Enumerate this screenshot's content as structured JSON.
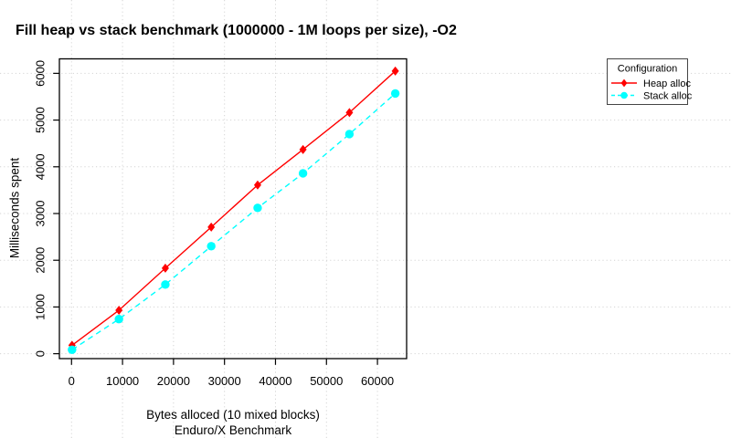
{
  "title": "Fill heap vs stack benchmark (1000000 - 1M loops per size), -O2",
  "colors": {
    "background": "#FFFFFF",
    "heap": "#FF0000",
    "stack": "#00FFFF",
    "grid": "#D4D4D4",
    "axis": "#000000",
    "legend_border": "#444444"
  },
  "legend": {
    "title": "Configuration",
    "items": [
      {
        "label": "Heap alloc",
        "series": "heap"
      },
      {
        "label": "Stack alloc",
        "series": "stack"
      }
    ]
  },
  "chart_data": {
    "type": "line",
    "title": "Fill heap vs stack benchmark (1000000 - 1M loops per size), -O2",
    "xlabel": "Bytes alloced (10 mixed blocks)",
    "xlabel_line2": "Enduro/X Benchmark",
    "ylabel": "Milliseconds spent",
    "x": [
      100,
      9300,
      18400,
      27400,
      36500,
      45400,
      54500,
      63500
    ],
    "series": [
      {
        "name": "Heap alloc",
        "color": "#FF0000",
        "marker": "diamond",
        "line_style": "solid",
        "values": [
          180,
          930,
          1830,
          2710,
          3610,
          4370,
          5160,
          6050
        ]
      },
      {
        "name": "Stack alloc",
        "color": "#00FFFF",
        "marker": "circle",
        "line_style": "dashed",
        "values": [
          85,
          740,
          1480,
          2300,
          3120,
          3860,
          4700,
          5570
        ]
      }
    ],
    "x_ticks": [
      0,
      10000,
      20000,
      30000,
      40000,
      50000,
      60000
    ],
    "y_ticks": [
      0,
      1000,
      2000,
      3000,
      4000,
      5000,
      6000
    ],
    "xlim": [
      -2380,
      65720
    ],
    "ylim": [
      -105,
      6310
    ],
    "grid": true,
    "grid_style": "dotted-full-canvas",
    "legend_position": "top-right-outside"
  }
}
